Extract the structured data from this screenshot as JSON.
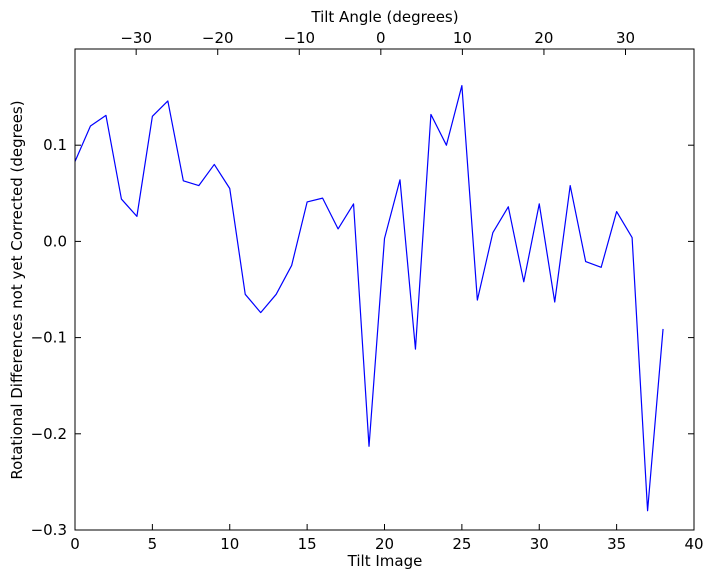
{
  "chart_data": {
    "type": "line",
    "xlabel": "Tilt Image",
    "ylabel": "Rotational Differences not yet Corrected (degrees)",
    "top_xlabel": "Tilt Angle (degrees)",
    "xlim": [
      0,
      40
    ],
    "ylim": [
      -0.3,
      0.2
    ],
    "x_ticks": [
      0,
      5,
      10,
      15,
      20,
      25,
      30,
      35,
      40
    ],
    "x_tick_labels": [
      "0",
      "5",
      "10",
      "15",
      "20",
      "25",
      "30",
      "35",
      "40"
    ],
    "y_ticks": [
      -0.3,
      -0.2,
      -0.1,
      0.0,
      0.1
    ],
    "y_tick_labels": [
      "−0.3",
      "−0.2",
      "−0.1",
      "0.0",
      "0.1"
    ],
    "top_x_ticks": [
      -30,
      -20,
      -10,
      0,
      10,
      20,
      30
    ],
    "top_x_tick_labels": [
      "−30",
      "−20",
      "−10",
      "0",
      "10",
      "20",
      "30"
    ],
    "top_xlim": [
      -37.5,
      38.4
    ],
    "grid": false,
    "series": [
      {
        "color": "#0000ff",
        "x": [
          0,
          1,
          2,
          3,
          4,
          5,
          6,
          7,
          8,
          9,
          10,
          11,
          12,
          13,
          14,
          15,
          16,
          17,
          18,
          19,
          20,
          21,
          22,
          23,
          24,
          25,
          26,
          27,
          28,
          29,
          30,
          31,
          32,
          33,
          34,
          35,
          36,
          37,
          38
        ],
        "y": [
          0.083,
          0.12,
          0.131,
          0.044,
          0.026,
          0.13,
          0.146,
          0.063,
          0.058,
          0.08,
          0.055,
          -0.055,
          -0.074,
          -0.055,
          -0.025,
          0.041,
          0.045,
          0.013,
          0.039,
          -0.213,
          0.003,
          0.064,
          -0.112,
          0.132,
          0.1,
          0.162,
          -0.061,
          0.009,
          0.036,
          -0.042,
          0.039,
          -0.063,
          0.058,
          -0.021,
          -0.027,
          0.031,
          0.004,
          -0.28,
          -0.091
        ]
      }
    ]
  }
}
